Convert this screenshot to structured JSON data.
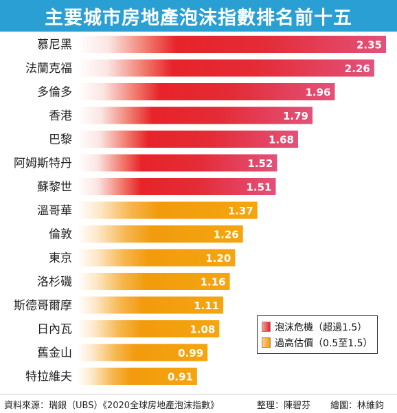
{
  "title": "主要城市房地產泡沫指數排名前十五",
  "chart_data": {
    "type": "bar",
    "orientation": "horizontal",
    "categories": [
      "慕尼黑",
      "法蘭克福",
      "多倫多",
      "香港",
      "巴黎",
      "阿姆斯特丹",
      "蘇黎世",
      "溫哥華",
      "倫敦",
      "東京",
      "洛杉磯",
      "斯德哥爾摩",
      "日內瓦",
      "舊金山",
      "特拉維夫"
    ],
    "values": [
      2.35,
      2.26,
      1.96,
      1.79,
      1.68,
      1.52,
      1.51,
      1.37,
      1.26,
      1.2,
      1.16,
      1.11,
      1.08,
      0.99,
      0.91
    ],
    "value_labels": [
      "2.35",
      "2.26",
      "1.96",
      "1.79",
      "1.68",
      "1.52",
      "1.51",
      "1.37",
      "1.26",
      "1.20",
      "1.16",
      "1.11",
      "1.08",
      "0.99",
      "0.91"
    ],
    "bar_group": [
      "bubble",
      "bubble",
      "bubble",
      "bubble",
      "bubble",
      "bubble",
      "bubble",
      "overvalued",
      "overvalued",
      "overvalued",
      "overvalued",
      "overvalued",
      "overvalued",
      "overvalued",
      "overvalued"
    ],
    "xlim": [
      0,
      2.35
    ],
    "grid": false,
    "legend_position": "bottom-right",
    "legend": [
      {
        "label": "泡沫危機（超過1.5）",
        "color": "#e8232a"
      },
      {
        "label": "過高估價（0.5至1.5）",
        "color": "#f29b0d"
      }
    ],
    "colors": {
      "bubble": "#e8232a",
      "overvalued": "#f29b0d"
    }
  },
  "footer": {
    "source": "資料來源：瑞銀（UBS）《2020全球房地產泡沫指數》",
    "organizer": "整理：陳碧芬",
    "illustrator": "繪圖：林維鈞"
  }
}
